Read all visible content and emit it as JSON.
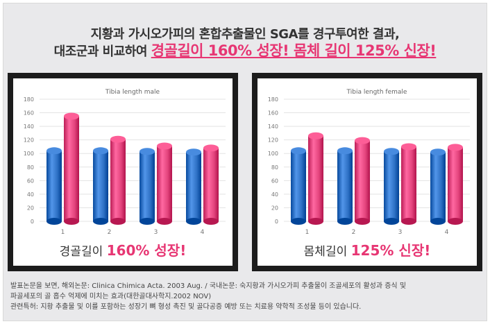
{
  "header": {
    "line1": "지황과 가시오가피의 혼합추출물인 SGA를 경구투여한 결과,",
    "line2_prefix": "대조군과 비교하여",
    "line2_highlight": "경골길이 160% 성장! 몸체 길이 125% 신장!"
  },
  "chart_data": [
    {
      "type": "bar",
      "title": "Tibia length male",
      "categories": [
        "1",
        "2",
        "3",
        "4"
      ],
      "series": [
        {
          "values": [
            104,
            104,
            103,
            102
          ]
        },
        {
          "values": [
            155,
            121,
            111,
            108
          ]
        }
      ],
      "ylim": [
        0,
        180
      ],
      "yticks": [
        0,
        20,
        40,
        60,
        80,
        100,
        120,
        140,
        160,
        180
      ],
      "grid": true,
      "caption": {
        "text": "경골길이",
        "value": "160% 성장!"
      }
    },
    {
      "type": "bar",
      "title": "Tibia length female",
      "categories": [
        "1",
        "2",
        "3",
        "4"
      ],
      "series": [
        {
          "values": [
            104,
            104,
            103,
            102
          ]
        },
        {
          "values": [
            126,
            119,
            110,
            109
          ]
        }
      ],
      "ylim": [
        0,
        180
      ],
      "yticks": [
        0,
        20,
        40,
        60,
        80,
        100,
        120,
        140,
        160,
        180
      ],
      "grid": true,
      "caption": {
        "text": "몸체길이",
        "value": "125% 신장!"
      }
    }
  ],
  "colors": {
    "blue": "#2f72c6",
    "pink": "#e4457e",
    "accent": "#e73673"
  },
  "footnote": {
    "line1": "발표논문을 보면, 해외논문: Clinica Chimica Acta. 2003 Aug. / 국내논문: 숙지황과 가시오가피 추출물이 조골세포의 활성과 증식 및",
    "line2": "파골세포의 골 흡수 억제에 미치는 효과(대한골대사학지.2002 NOV)",
    "line3": "관련특허: 지황 추출물 및 이를 포함하는 성장기 뼈 형성 촉진 및 골다공증 예방 또는 치료용 약학적 조성물 등이 있습니다."
  }
}
